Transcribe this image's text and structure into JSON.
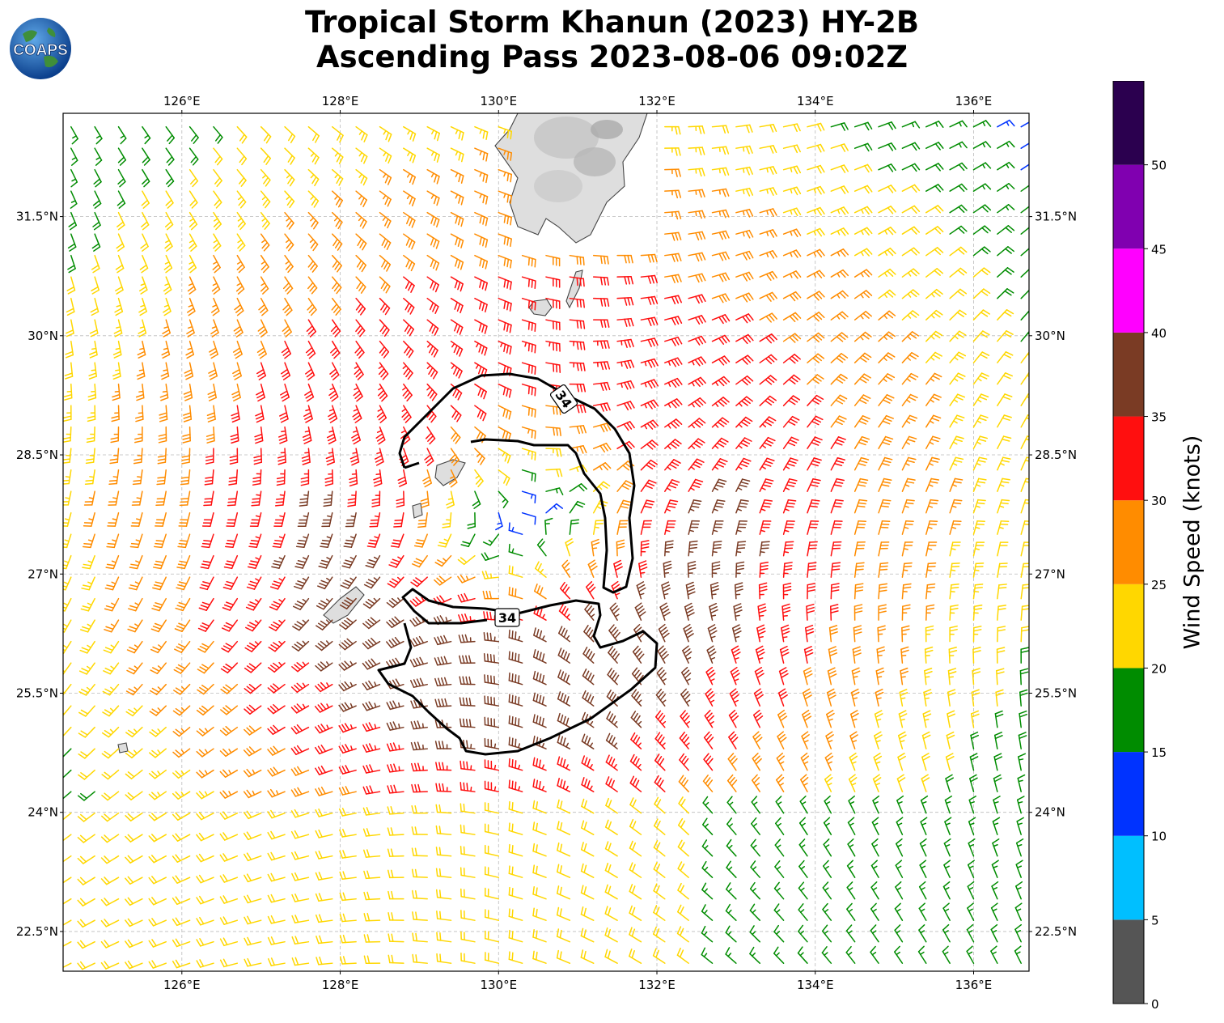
{
  "header": {
    "title_line1": "Tropical Storm Khanun (2023) HY-2B",
    "title_line2": "Ascending Pass 2023-08-06 09:02Z",
    "logo_text": "COAPS"
  },
  "map": {
    "lon_ticks": [
      "126°E",
      "128°E",
      "130°E",
      "132°E",
      "134°E",
      "136°E"
    ],
    "lat_ticks": [
      "31.5°N",
      "30°N",
      "28.5°N",
      "27°N",
      "25.5°N",
      "24°N",
      "22.5°N"
    ],
    "lon_values": [
      126,
      128,
      130,
      132,
      134,
      136
    ],
    "lat_values": [
      31.5,
      30,
      28.5,
      27,
      25.5,
      24,
      22.5
    ],
    "extent": {
      "lon": [
        124.5,
        136.7
      ],
      "lat": [
        22.0,
        32.8
      ]
    },
    "gridlines": true,
    "storm_center": {
      "lon": 130.3,
      "lat": 27.6
    },
    "contour_label": "34"
  },
  "colorbar": {
    "label": "Wind Speed (knots)",
    "tick_labels": [
      "0",
      "5",
      "10",
      "15",
      "20",
      "25",
      "30",
      "35",
      "40",
      "45",
      "50"
    ],
    "bins": [
      {
        "from": 0,
        "to": 5,
        "color": "#555555"
      },
      {
        "from": 5,
        "to": 10,
        "color": "#00bfff"
      },
      {
        "from": 10,
        "to": 15,
        "color": "#0033ff"
      },
      {
        "from": 15,
        "to": 20,
        "color": "#008c00"
      },
      {
        "from": 20,
        "to": 25,
        "color": "#ffd700"
      },
      {
        "from": 25,
        "to": 30,
        "color": "#ff8c00"
      },
      {
        "from": 30,
        "to": 35,
        "color": "#ff0f0f"
      },
      {
        "from": 35,
        "to": 40,
        "color": "#7a3b24"
      },
      {
        "from": 40,
        "to": 45,
        "color": "#ff00ff"
      },
      {
        "from": 45,
        "to": 50,
        "color": "#8000b0"
      },
      {
        "from": 50,
        "to": 55,
        "color": "#2b004f"
      }
    ]
  }
}
